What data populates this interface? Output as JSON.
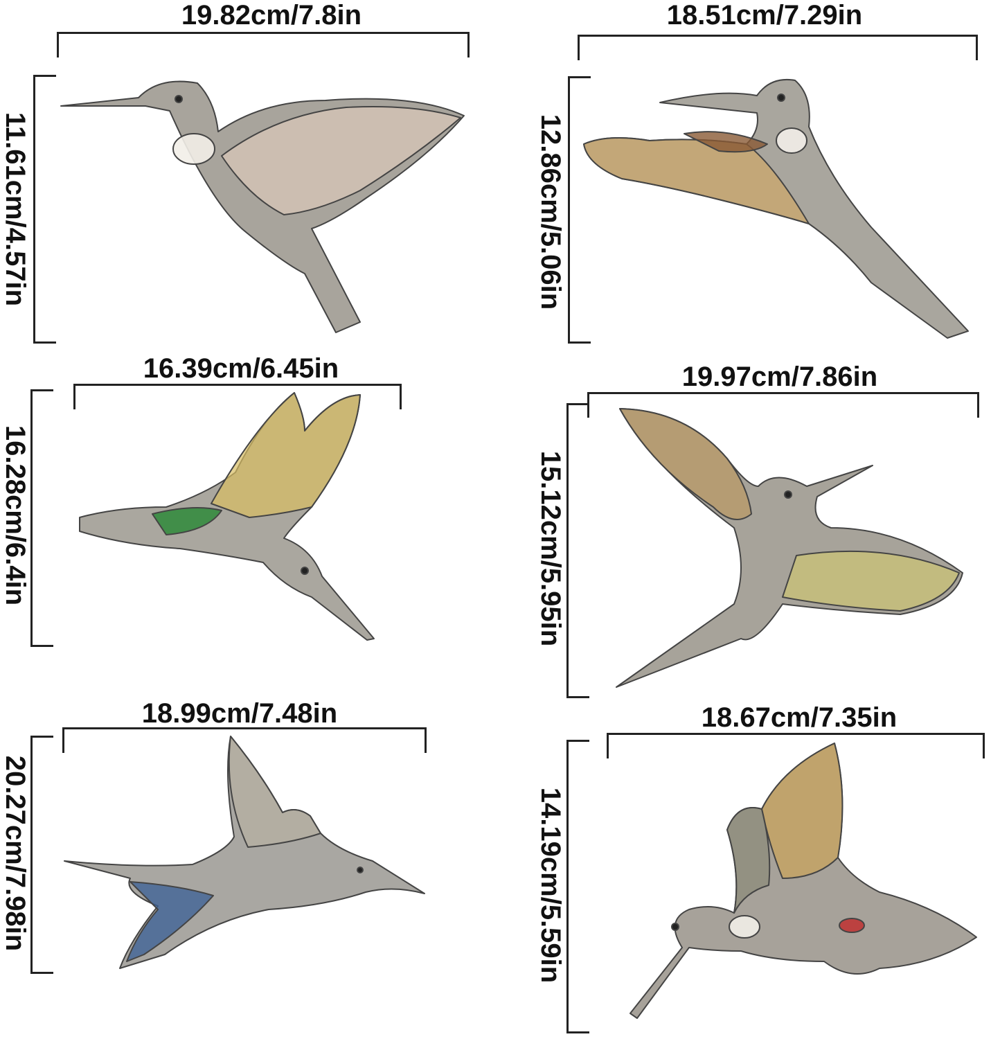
{
  "items": [
    {
      "width_label": "19.82cm/7.8in",
      "height_label": "11.61cm/4.57in",
      "colors": {
        "body": "#a8a49c",
        "wing": "#d8c7b8",
        "accent": "#f2eee8"
      },
      "icon": "hummingbird-icon"
    },
    {
      "width_label": "18.51cm/7.29in",
      "height_label": "12.86cm/5.06in",
      "colors": {
        "body": "#a9a69e",
        "wing": "#c9a86e",
        "accent": "#8a5a35"
      },
      "icon": "hummingbird-icon"
    },
    {
      "width_label": "16.39cm/6.45in",
      "height_label": "16.28cm/6.4in",
      "colors": {
        "body": "#aaa79f",
        "wing": "#d9be62",
        "accent": "#2f8a3a"
      },
      "icon": "hummingbird-icon"
    },
    {
      "width_label": "19.97cm/7.86in",
      "height_label": "15.12cm/5.95in",
      "colors": {
        "body": "#a7a39a",
        "wing": "#b99a66",
        "accent": "#d8cf6a"
      },
      "icon": "hummingbird-icon"
    },
    {
      "width_label": "18.99cm/7.48in",
      "height_label": "20.27cm/7.98in",
      "colors": {
        "body": "#a9a7a2",
        "wing": "#b8b0a2",
        "accent": "#3a5f96"
      },
      "icon": "hummingbird-icon"
    },
    {
      "width_label": "18.67cm/7.35in",
      "height_label": "14.19cm/5.59in",
      "colors": {
        "body": "#a7a29a",
        "wing": "#c8a35c",
        "accent": "#c03030"
      },
      "icon": "hummingbird-icon"
    }
  ]
}
